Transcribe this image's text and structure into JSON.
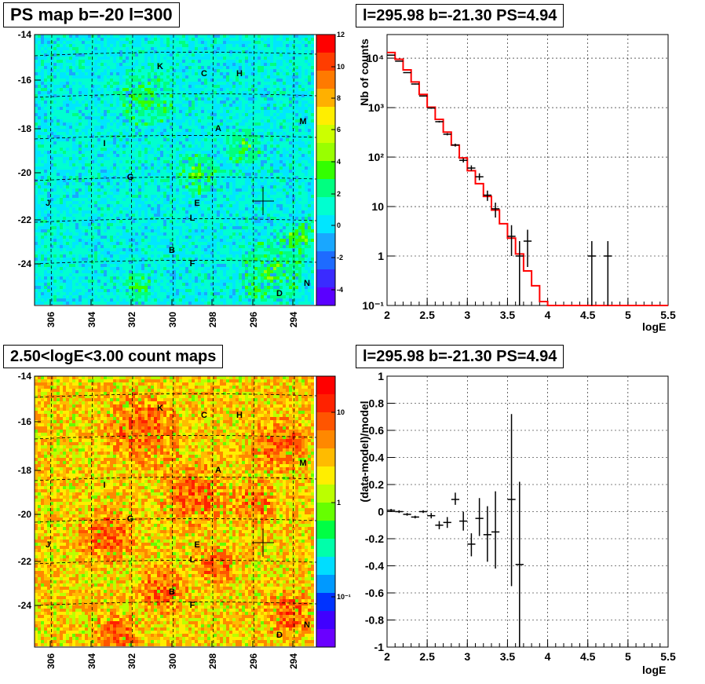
{
  "panels": {
    "tl_title": "PS map b=-20 l=300",
    "tr_title": "l=295.98 b=-21.30 PS=4.94",
    "bl_title": "2.50<logE<3.00 count maps",
    "br_title": "l=295.98 b=-21.30 PS=4.94"
  },
  "maps": {
    "lon_ticks": [
      "306",
      "304",
      "302",
      "300",
      "298",
      "296",
      "294"
    ],
    "lat_ticks": [
      "-14",
      "-16",
      "-18",
      "-20",
      "-22",
      "-24"
    ],
    "source_labels": [
      "K",
      "C",
      "H",
      "M",
      "A",
      "I",
      "G",
      "J",
      "E",
      "L",
      "B",
      "F",
      "N",
      "D"
    ],
    "ps_colorbar_ticks": [
      "12",
      "10",
      "8",
      "6",
      "4",
      "2",
      "0",
      "-2",
      "-4"
    ],
    "count_colorbar_ticks": [
      "10",
      "1",
      "10⁻¹"
    ],
    "ps_palette": [
      "#5a00ff",
      "#3a2bff",
      "#1e6bff",
      "#19a7ff",
      "#00e6ff",
      "#00ffd0",
      "#00ff80",
      "#33ff00",
      "#99ff00",
      "#ccff00",
      "#ffee00",
      "#ffb000",
      "#ff7a00",
      "#ff3d00",
      "#ff0000"
    ],
    "count_palette": [
      "#6a00ff",
      "#4000ff",
      "#0033ff",
      "#0099ff",
      "#00ddff",
      "#00ffaa",
      "#00ff44",
      "#66ff00",
      "#bbff00",
      "#ffee00",
      "#ffbb00",
      "#ff8800",
      "#ff5500",
      "#ff2200",
      "#ff0000"
    ]
  },
  "chart_data": [
    {
      "type": "line",
      "title": "l=295.98 b=-21.30 PS=4.94",
      "xlabel": "logE",
      "ylabel": "Nb of counts",
      "xlim": [
        2,
        5.5
      ],
      "ylim": [
        0.1,
        30000
      ],
      "yscale": "log",
      "x_ticks": [
        "2",
        "2.5",
        "3",
        "3.5",
        "4",
        "4.5",
        "5",
        "5.5"
      ],
      "y_ticks": [
        {
          "v": 10000,
          "t": "10⁴"
        },
        {
          "v": 1000,
          "t": "10³"
        },
        {
          "v": 100,
          "t": "10²"
        },
        {
          "v": 10,
          "t": "10"
        },
        {
          "v": 1,
          "t": "1"
        },
        {
          "v": 0.1,
          "t": "10⁻¹"
        }
      ],
      "grid": true,
      "series": [
        {
          "kind": "errorbar",
          "color": "#000000",
          "points": [
            {
              "x": 2.05,
              "y": 11500,
              "lo": 11300,
              "hi": 11700
            },
            {
              "x": 2.15,
              "y": 8700,
              "lo": 8550,
              "hi": 8850
            },
            {
              "x": 2.25,
              "y": 5100,
              "lo": 5000,
              "hi": 5200
            },
            {
              "x": 2.35,
              "y": 3000,
              "lo": 2930,
              "hi": 3070
            },
            {
              "x": 2.45,
              "y": 1720,
              "lo": 1680,
              "hi": 1760
            },
            {
              "x": 2.55,
              "y": 980,
              "lo": 950,
              "hi": 1010
            },
            {
              "x": 2.65,
              "y": 520,
              "lo": 500,
              "hi": 540
            },
            {
              "x": 2.75,
              "y": 290,
              "lo": 275,
              "hi": 305
            },
            {
              "x": 2.85,
              "y": 175,
              "lo": 163,
              "hi": 187
            },
            {
              "x": 2.95,
              "y": 86,
              "lo": 78,
              "hi": 95
            },
            {
              "x": 3.05,
              "y": 60,
              "lo": 53,
              "hi": 68
            },
            {
              "x": 3.15,
              "y": 40,
              "lo": 34,
              "hi": 47
            },
            {
              "x": 3.25,
              "y": 17,
              "lo": 13,
              "hi": 21
            },
            {
              "x": 3.35,
              "y": 9,
              "lo": 6,
              "hi": 12
            },
            {
              "x": 3.55,
              "y": 2.5,
              "lo": 1,
              "hi": 4.2
            },
            {
              "x": 3.65,
              "y": 1,
              "lo": 0.1,
              "hi": 2
            },
            {
              "x": 3.75,
              "y": 2,
              "lo": 0.6,
              "hi": 3.4
            },
            {
              "x": 4.55,
              "y": 1,
              "lo": 0.1,
              "hi": 2
            },
            {
              "x": 4.75,
              "y": 1,
              "lo": 0.1,
              "hi": 2
            }
          ]
        },
        {
          "kind": "step",
          "color": "#ff0000",
          "edges": [
            2.0,
            2.1,
            2.2,
            2.3,
            2.4,
            2.5,
            2.6,
            2.7,
            2.8,
            2.9,
            3.0,
            3.1,
            3.2,
            3.3,
            3.4,
            3.5,
            3.6,
            3.7,
            3.8,
            3.9,
            4.0,
            5.5
          ],
          "values": [
            13000,
            9500,
            5800,
            3300,
            1850,
            1020,
            580,
            320,
            175,
            96,
            53,
            29,
            16,
            8.5,
            4.5,
            2.3,
            1.1,
            0.5,
            0.25,
            0.12,
            0.1
          ]
        }
      ]
    },
    {
      "type": "scatter",
      "title": "l=295.98 b=-21.30 PS=4.94",
      "xlabel": "logE",
      "ylabel": "(data-model)/model",
      "xlim": [
        2,
        5.5
      ],
      "ylim": [
        -1,
        1
      ],
      "x_ticks": [
        "2",
        "2.5",
        "3",
        "3.5",
        "4",
        "4.5",
        "5",
        "5.5"
      ],
      "y_ticks": [
        "1",
        "0.8",
        "0.6",
        "0.4",
        "0.2",
        "0",
        "-0.2",
        "-0.4",
        "-0.6",
        "-0.8",
        "-1"
      ],
      "grid": true,
      "points": [
        {
          "x": 2.05,
          "y": 0.01,
          "lo": 0.0,
          "hi": 0.02
        },
        {
          "x": 2.15,
          "y": 0.0,
          "lo": -0.01,
          "hi": 0.01
        },
        {
          "x": 2.25,
          "y": -0.02,
          "lo": -0.03,
          "hi": -0.01
        },
        {
          "x": 2.35,
          "y": -0.04,
          "lo": -0.05,
          "hi": -0.03
        },
        {
          "x": 2.45,
          "y": 0.0,
          "lo": -0.01,
          "hi": 0.01
        },
        {
          "x": 2.55,
          "y": -0.03,
          "lo": -0.05,
          "hi": -0.01
        },
        {
          "x": 2.65,
          "y": -0.1,
          "lo": -0.13,
          "hi": -0.07
        },
        {
          "x": 2.75,
          "y": -0.08,
          "lo": -0.12,
          "hi": -0.04
        },
        {
          "x": 2.85,
          "y": 0.09,
          "lo": 0.05,
          "hi": 0.14
        },
        {
          "x": 2.95,
          "y": -0.07,
          "lo": -0.14,
          "hi": 0.0
        },
        {
          "x": 3.05,
          "y": -0.24,
          "lo": -0.33,
          "hi": -0.16
        },
        {
          "x": 3.15,
          "y": -0.05,
          "lo": -0.18,
          "hi": 0.1
        },
        {
          "x": 3.25,
          "y": -0.17,
          "lo": -0.37,
          "hi": 0.04
        },
        {
          "x": 3.35,
          "y": -0.15,
          "lo": -0.42,
          "hi": 0.15
        },
        {
          "x": 3.55,
          "y": 0.09,
          "lo": -0.55,
          "hi": 0.72
        },
        {
          "x": 3.65,
          "y": -0.39,
          "lo": -1.0,
          "hi": 0.22
        }
      ]
    }
  ]
}
